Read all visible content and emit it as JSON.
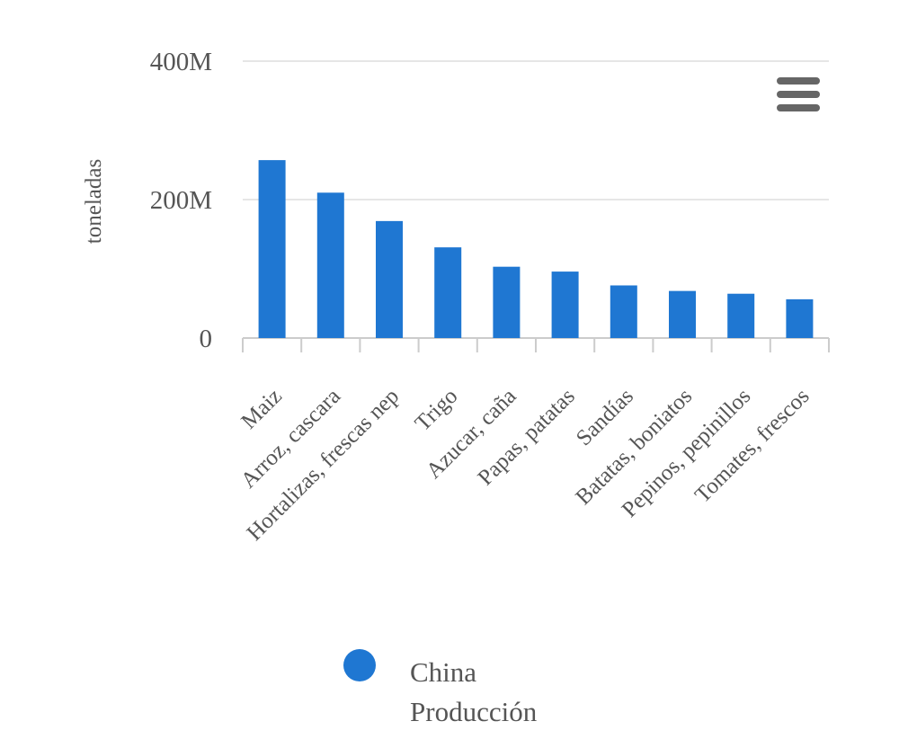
{
  "chart_data": {
    "type": "bar",
    "title": "",
    "xlabel": "",
    "ylabel": "toneladas",
    "categories": [
      "Maiz",
      "Arroz, cascara",
      "Hortalizas, frescas nep",
      "Trigo",
      "Azucar, caña",
      "Papas, patatas",
      "Sandías",
      "Batatas, boniatos",
      "Pepinos, pepinillos",
      "Tomates, frescos"
    ],
    "series": [
      {
        "name": "China Producción",
        "values": [
          257000000,
          210000000,
          169000000,
          131000000,
          103000000,
          96000000,
          76000000,
          68000000,
          64000000,
          56000000
        ]
      }
    ],
    "ylim": [
      0,
      400000000
    ],
    "yticks": [
      0,
      200000000,
      400000000
    ],
    "ytick_labels": [
      "0",
      "200M",
      "400M"
    ],
    "grid": true,
    "legend_position": "bottom",
    "colors": {
      "bar": "#1f77d2",
      "grid": "#e6e6e6",
      "axis": "#cccccc",
      "text": "#555555"
    }
  },
  "legend": {
    "label": "China\nProducción"
  },
  "menu": {
    "icon": "hamburger-menu-icon"
  }
}
